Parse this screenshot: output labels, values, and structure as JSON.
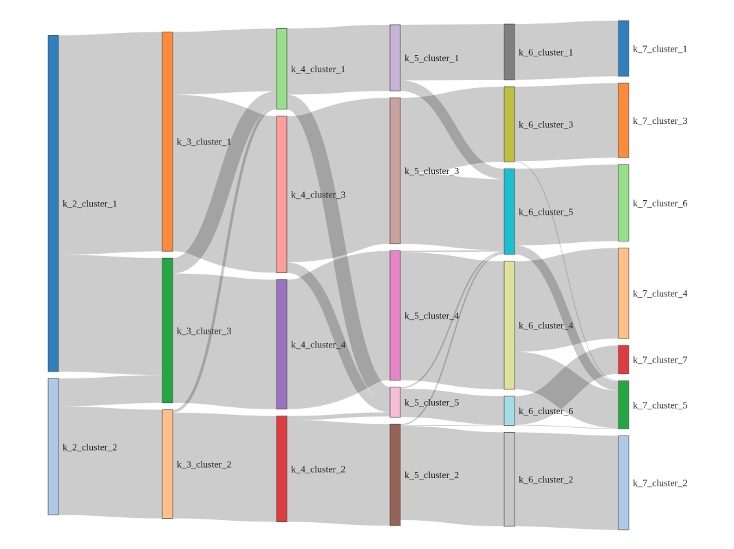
{
  "chart_data": {
    "type": "sankey",
    "nodes": [
      {
        "id": "k_2_cluster_1",
        "label": "k_2_cluster_1",
        "color": "#2e80be"
      },
      {
        "id": "k_2_cluster_2",
        "label": "k_2_cluster_2",
        "color": "#aec8e8"
      },
      {
        "id": "k_3_cluster_1",
        "label": "k_3_cluster_1",
        "color": "#fd8b3a"
      },
      {
        "id": "k_3_cluster_3",
        "label": "k_3_cluster_3",
        "color": "#26a643"
      },
      {
        "id": "k_3_cluster_2",
        "label": "k_3_cluster_2",
        "color": "#fec088"
      },
      {
        "id": "k_4_cluster_1",
        "label": "k_4_cluster_1",
        "color": "#98df8a"
      },
      {
        "id": "k_4_cluster_3",
        "label": "k_4_cluster_3",
        "color": "#ff9d9b"
      },
      {
        "id": "k_4_cluster_4",
        "label": "k_4_cluster_4",
        "color": "#9d72c2"
      },
      {
        "id": "k_4_cluster_2",
        "label": "k_4_cluster_2",
        "color": "#df3b40"
      },
      {
        "id": "k_5_cluster_1",
        "label": "k_5_cluster_1",
        "color": "#c7b3d6"
      },
      {
        "id": "k_5_cluster_3",
        "label": "k_5_cluster_3",
        "color": "#c9a29d"
      },
      {
        "id": "k_5_cluster_4",
        "label": "k_5_cluster_4",
        "color": "#e684c7"
      },
      {
        "id": "k_5_cluster_5",
        "label": "k_5_cluster_5",
        "color": "#f8bcd4"
      },
      {
        "id": "k_5_cluster_2",
        "label": "k_5_cluster_2",
        "color": "#966358"
      },
      {
        "id": "k_6_cluster_1",
        "label": "k_6_cluster_1",
        "color": "#7f7f7f"
      },
      {
        "id": "k_6_cluster_3",
        "label": "k_6_cluster_3",
        "color": "#bebe43"
      },
      {
        "id": "k_6_cluster_5",
        "label": "k_6_cluster_5",
        "color": "#1bbfd0"
      },
      {
        "id": "k_6_cluster_4",
        "label": "k_6_cluster_4",
        "color": "#dfe19b"
      },
      {
        "id": "k_6_cluster_6",
        "label": "k_6_cluster_6",
        "color": "#a4dde6"
      },
      {
        "id": "k_6_cluster_2",
        "label": "k_6_cluster_2",
        "color": "#c7c7c7"
      },
      {
        "id": "k_7_cluster_1",
        "label": "k_7_cluster_1",
        "color": "#2e80be"
      },
      {
        "id": "k_7_cluster_3",
        "label": "k_7_cluster_3",
        "color": "#fd8b3a"
      },
      {
        "id": "k_7_cluster_6",
        "label": "k_7_cluster_6",
        "color": "#98df8a"
      },
      {
        "id": "k_7_cluster_4",
        "label": "k_7_cluster_4",
        "color": "#fec088"
      },
      {
        "id": "k_7_cluster_7",
        "label": "k_7_cluster_7",
        "color": "#df3b40"
      },
      {
        "id": "k_7_cluster_5",
        "label": "k_7_cluster_5",
        "color": "#26a643"
      },
      {
        "id": "k_7_cluster_2",
        "label": "k_7_cluster_2",
        "color": "#aec8e8"
      }
    ],
    "links": [
      {
        "source": "k_2_cluster_1",
        "target": "k_3_cluster_1",
        "value": 315
      },
      {
        "source": "k_2_cluster_1",
        "target": "k_3_cluster_3",
        "value": 168
      },
      {
        "source": "k_2_cluster_2",
        "target": "k_3_cluster_3",
        "value": 40
      },
      {
        "source": "k_2_cluster_2",
        "target": "k_3_cluster_2",
        "value": 156
      },
      {
        "source": "k_3_cluster_1",
        "target": "k_4_cluster_1",
        "value": 90
      },
      {
        "source": "k_3_cluster_1",
        "target": "k_4_cluster_3",
        "value": 225
      },
      {
        "source": "k_3_cluster_3",
        "target": "k_4_cluster_1",
        "value": 22
      },
      {
        "source": "k_3_cluster_3",
        "target": "k_4_cluster_4",
        "value": 186
      },
      {
        "source": "k_3_cluster_2",
        "target": "k_4_cluster_1",
        "value": 4
      },
      {
        "source": "k_3_cluster_2",
        "target": "k_4_cluster_2",
        "value": 152
      },
      {
        "source": "k_4_cluster_1",
        "target": "k_5_cluster_1",
        "value": 95
      },
      {
        "source": "k_4_cluster_1",
        "target": "k_5_cluster_5",
        "value": 21
      },
      {
        "source": "k_4_cluster_3",
        "target": "k_5_cluster_3",
        "value": 210
      },
      {
        "source": "k_4_cluster_3",
        "target": "k_5_cluster_5",
        "value": 15
      },
      {
        "source": "k_4_cluster_4",
        "target": "k_5_cluster_4",
        "value": 186
      },
      {
        "source": "k_4_cluster_2",
        "target": "k_5_cluster_5",
        "value": 6
      },
      {
        "source": "k_4_cluster_2",
        "target": "k_5_cluster_2",
        "value": 146
      },
      {
        "source": "k_5_cluster_1",
        "target": "k_6_cluster_1",
        "value": 80
      },
      {
        "source": "k_5_cluster_1",
        "target": "k_6_cluster_5",
        "value": 15
      },
      {
        "source": "k_5_cluster_3",
        "target": "k_6_cluster_3",
        "value": 108
      },
      {
        "source": "k_5_cluster_3",
        "target": "k_6_cluster_5",
        "value": 102
      },
      {
        "source": "k_5_cluster_4",
        "target": "k_6_cluster_4",
        "value": 184
      },
      {
        "source": "k_5_cluster_4",
        "target": "k_6_cluster_5",
        "value": 2
      },
      {
        "source": "k_5_cluster_5",
        "target": "k_6_cluster_5",
        "value": 2
      },
      {
        "source": "k_5_cluster_5",
        "target": "k_6_cluster_6",
        "value": 41
      },
      {
        "source": "k_5_cluster_2",
        "target": "k_6_cluster_5",
        "value": 2
      },
      {
        "source": "k_5_cluster_2",
        "target": "k_6_cluster_2",
        "value": 135
      },
      {
        "source": "k_5_cluster_2",
        "target": "k_6_cluster_6",
        "value": 1
      },
      {
        "source": "k_6_cluster_1",
        "target": "k_7_cluster_1",
        "value": 80
      },
      {
        "source": "k_6_cluster_3",
        "target": "k_7_cluster_3",
        "value": 107
      },
      {
        "source": "k_6_cluster_3",
        "target": "k_7_cluster_5",
        "value": 1
      },
      {
        "source": "k_6_cluster_5",
        "target": "k_7_cluster_6",
        "value": 110
      },
      {
        "source": "k_6_cluster_5",
        "target": "k_7_cluster_5",
        "value": 13
      },
      {
        "source": "k_6_cluster_4",
        "target": "k_7_cluster_4",
        "value": 130
      },
      {
        "source": "k_6_cluster_4",
        "target": "k_7_cluster_5",
        "value": 54
      },
      {
        "source": "k_6_cluster_6",
        "target": "k_7_cluster_7",
        "value": 41
      },
      {
        "source": "k_6_cluster_6",
        "target": "k_7_cluster_5",
        "value": 1
      },
      {
        "source": "k_6_cluster_2",
        "target": "k_7_cluster_2",
        "value": 135
      }
    ]
  }
}
